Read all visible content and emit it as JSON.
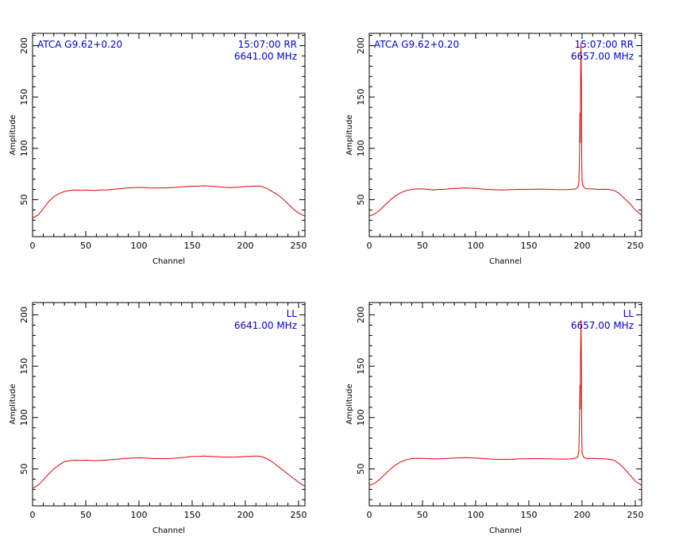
{
  "figure": {
    "panels": [
      {
        "id": "rr-6641",
        "title_left": "ATCA G9.62+0.20",
        "title_right": "15:07:00  RR",
        "freq_label": "6641.00  MHz"
      },
      {
        "id": "rr-6657",
        "title_left": "ATCA G9.62+0.20",
        "title_right": "15:07:00  RR",
        "freq_label": "6657.00  MHz"
      },
      {
        "id": "ll-6641",
        "title_left": "",
        "title_right": "LL",
        "freq_label": "6641.00  MHz"
      },
      {
        "id": "ll-6657",
        "title_left": "",
        "title_right": "LL",
        "freq_label": "6657.00  MHz"
      }
    ]
  },
  "chart_data": [
    {
      "type": "line",
      "xlabel": "Channel",
      "ylabel": "Amplitude",
      "xlim": [
        0,
        256
      ],
      "ylim": [
        14,
        212
      ],
      "xticks": [
        0,
        50,
        100,
        150,
        200,
        250
      ],
      "yticks": [
        50,
        100,
        150,
        200
      ],
      "line_color": "#e00000",
      "annotation_color": "#0000cc",
      "series": [
        {
          "points": [
            [
              0,
              32
            ],
            [
              5,
              35
            ],
            [
              10,
              41
            ],
            [
              15,
              48
            ],
            [
              20,
              53
            ],
            [
              25,
              56
            ],
            [
              30,
              58
            ],
            [
              35,
              59
            ],
            [
              40,
              59.5
            ],
            [
              45,
              59
            ],
            [
              50,
              59.5
            ],
            [
              55,
              59
            ],
            [
              60,
              59
            ],
            [
              65,
              59.5
            ],
            [
              70,
              59.5
            ],
            [
              75,
              60
            ],
            [
              80,
              60.5
            ],
            [
              85,
              61
            ],
            [
              90,
              61.5
            ],
            [
              95,
              61.8
            ],
            [
              100,
              62
            ],
            [
              105,
              61.8
            ],
            [
              110,
              61.5
            ],
            [
              115,
              61.3
            ],
            [
              120,
              61.5
            ],
            [
              125,
              61.5
            ],
            [
              130,
              61.8
            ],
            [
              135,
              62
            ],
            [
              140,
              62.5
            ],
            [
              145,
              62.8
            ],
            [
              150,
              63
            ],
            [
              155,
              63.2
            ],
            [
              160,
              63.5
            ],
            [
              165,
              63.3
            ],
            [
              170,
              63
            ],
            [
              175,
              62.5
            ],
            [
              180,
              62
            ],
            [
              185,
              61.8
            ],
            [
              190,
              62
            ],
            [
              195,
              62.3
            ],
            [
              200,
              62.8
            ],
            [
              205,
              63
            ],
            [
              210,
              63.3
            ],
            [
              215,
              63
            ],
            [
              220,
              61
            ],
            [
              225,
              58
            ],
            [
              230,
              55
            ],
            [
              235,
              51
            ],
            [
              240,
              46
            ],
            [
              245,
              41
            ],
            [
              250,
              37
            ],
            [
              256,
              34
            ]
          ]
        }
      ]
    },
    {
      "type": "line",
      "xlabel": "Channel",
      "ylabel": "Amplitude",
      "xlim": [
        0,
        256
      ],
      "ylim": [
        14,
        212
      ],
      "xticks": [
        0,
        50,
        100,
        150,
        200,
        250
      ],
      "yticks": [
        50,
        100,
        150,
        200
      ],
      "line_color": "#e00000",
      "annotation_color": "#0000cc",
      "series": [
        {
          "points": [
            [
              0,
              34
            ],
            [
              5,
              36
            ],
            [
              10,
              40
            ],
            [
              15,
              45
            ],
            [
              20,
              50
            ],
            [
              25,
              54
            ],
            [
              30,
              57
            ],
            [
              35,
              59
            ],
            [
              40,
              60
            ],
            [
              45,
              60.5
            ],
            [
              50,
              60.5
            ],
            [
              55,
              60
            ],
            [
              60,
              59.5
            ],
            [
              65,
              60
            ],
            [
              70,
              60
            ],
            [
              75,
              60.5
            ],
            [
              80,
              61
            ],
            [
              85,
              61.2
            ],
            [
              90,
              61.5
            ],
            [
              95,
              61.2
            ],
            [
              100,
              61
            ],
            [
              105,
              60.5
            ],
            [
              110,
              60
            ],
            [
              115,
              59.8
            ],
            [
              120,
              59.6
            ],
            [
              125,
              59.5
            ],
            [
              130,
              59.6
            ],
            [
              135,
              59.8
            ],
            [
              140,
              60
            ],
            [
              145,
              60
            ],
            [
              150,
              60
            ],
            [
              155,
              60.2
            ],
            [
              160,
              60.3
            ],
            [
              165,
              60.2
            ],
            [
              170,
              60
            ],
            [
              175,
              59.8
            ],
            [
              180,
              59.7
            ],
            [
              185,
              59.8
            ],
            [
              190,
              60
            ],
            [
              194,
              60.5
            ],
            [
              196,
              62
            ],
            [
              197,
              66
            ],
            [
              197.6,
              95
            ],
            [
              198,
              135
            ],
            [
              198.3,
              105
            ],
            [
              198.6,
              160
            ],
            [
              199,
              203
            ],
            [
              199.4,
              160
            ],
            [
              199.7,
              85
            ],
            [
              200,
              68
            ],
            [
              201,
              63
            ],
            [
              203,
              61
            ],
            [
              205,
              60.5
            ],
            [
              210,
              60.5
            ],
            [
              215,
              60
            ],
            [
              220,
              60.2
            ],
            [
              225,
              60
            ],
            [
              230,
              59
            ],
            [
              235,
              56
            ],
            [
              240,
              51
            ],
            [
              245,
              46
            ],
            [
              250,
              40
            ],
            [
              256,
              35
            ]
          ]
        }
      ]
    },
    {
      "type": "line",
      "xlabel": "Channel",
      "ylabel": "Amplitude",
      "xlim": [
        0,
        256
      ],
      "ylim": [
        14,
        212
      ],
      "xticks": [
        0,
        50,
        100,
        150,
        200,
        250
      ],
      "yticks": [
        50,
        100,
        150,
        200
      ],
      "line_color": "#e00000",
      "annotation_color": "#0000cc",
      "series": [
        {
          "points": [
            [
              0,
              31
            ],
            [
              5,
              34
            ],
            [
              10,
              39
            ],
            [
              15,
              45
            ],
            [
              20,
              50
            ],
            [
              25,
              54
            ],
            [
              30,
              57
            ],
            [
              35,
              58
            ],
            [
              40,
              58.5
            ],
            [
              45,
              58.3
            ],
            [
              50,
              58.5
            ],
            [
              55,
              58.2
            ],
            [
              60,
              58
            ],
            [
              65,
              58.3
            ],
            [
              70,
              58.6
            ],
            [
              75,
              59
            ],
            [
              80,
              59.5
            ],
            [
              85,
              60
            ],
            [
              90,
              60.3
            ],
            [
              95,
              60.6
            ],
            [
              100,
              60.8
            ],
            [
              105,
              60.6
            ],
            [
              110,
              60.3
            ],
            [
              115,
              60
            ],
            [
              120,
              60
            ],
            [
              125,
              60
            ],
            [
              130,
              60.2
            ],
            [
              135,
              60.5
            ],
            [
              140,
              61
            ],
            [
              145,
              61.5
            ],
            [
              150,
              62
            ],
            [
              155,
              62.2
            ],
            [
              160,
              62.5
            ],
            [
              165,
              62.3
            ],
            [
              170,
              62
            ],
            [
              175,
              61.8
            ],
            [
              180,
              61.5
            ],
            [
              185,
              61.5
            ],
            [
              190,
              61.6
            ],
            [
              195,
              61.8
            ],
            [
              200,
              62
            ],
            [
              205,
              62.3
            ],
            [
              210,
              62.5
            ],
            [
              215,
              62
            ],
            [
              220,
              60
            ],
            [
              225,
              57
            ],
            [
              230,
              53
            ],
            [
              235,
              49
            ],
            [
              240,
              45
            ],
            [
              245,
              41
            ],
            [
              250,
              37
            ],
            [
              256,
              33
            ]
          ]
        }
      ]
    },
    {
      "type": "line",
      "xlabel": "Channel",
      "ylabel": "Amplitude",
      "xlim": [
        0,
        256
      ],
      "ylim": [
        14,
        212
      ],
      "xticks": [
        0,
        50,
        100,
        150,
        200,
        250
      ],
      "yticks": [
        50,
        100,
        150,
        200
      ],
      "line_color": "#e00000",
      "annotation_color": "#0000cc",
      "series": [
        {
          "points": [
            [
              0,
              34
            ],
            [
              5,
              36
            ],
            [
              10,
              40
            ],
            [
              15,
              45
            ],
            [
              20,
              50
            ],
            [
              25,
              54
            ],
            [
              30,
              57
            ],
            [
              35,
              59
            ],
            [
              40,
              60
            ],
            [
              45,
              60.3
            ],
            [
              50,
              60.2
            ],
            [
              55,
              60
            ],
            [
              60,
              59.6
            ],
            [
              65,
              59.8
            ],
            [
              70,
              60
            ],
            [
              75,
              60.3
            ],
            [
              80,
              60.6
            ],
            [
              85,
              60.8
            ],
            [
              90,
              61
            ],
            [
              95,
              60.8
            ],
            [
              100,
              60.5
            ],
            [
              105,
              60.2
            ],
            [
              110,
              59.8
            ],
            [
              115,
              59.5
            ],
            [
              120,
              59.3
            ],
            [
              125,
              59.2
            ],
            [
              130,
              59.3
            ],
            [
              135,
              59.5
            ],
            [
              140,
              59.7
            ],
            [
              145,
              59.8
            ],
            [
              150,
              59.9
            ],
            [
              155,
              60
            ],
            [
              160,
              60
            ],
            [
              165,
              59.9
            ],
            [
              170,
              59.8
            ],
            [
              175,
              59.6
            ],
            [
              180,
              59.5
            ],
            [
              185,
              59.6
            ],
            [
              190,
              59.8
            ],
            [
              194,
              60.5
            ],
            [
              196,
              62
            ],
            [
              197,
              67
            ],
            [
              197.6,
              100
            ],
            [
              198,
              132
            ],
            [
              198.3,
              108
            ],
            [
              198.6,
              160
            ],
            [
              199,
              195
            ],
            [
              199.4,
              150
            ],
            [
              199.7,
              82
            ],
            [
              200,
              66
            ],
            [
              201,
              62
            ],
            [
              203,
              60.5
            ],
            [
              205,
              60
            ],
            [
              210,
              60.2
            ],
            [
              215,
              60
            ],
            [
              220,
              59.8
            ],
            [
              225,
              59.5
            ],
            [
              230,
              58.5
            ],
            [
              235,
              55
            ],
            [
              240,
              50
            ],
            [
              245,
              44
            ],
            [
              250,
              38
            ],
            [
              256,
              34
            ]
          ]
        }
      ]
    }
  ]
}
